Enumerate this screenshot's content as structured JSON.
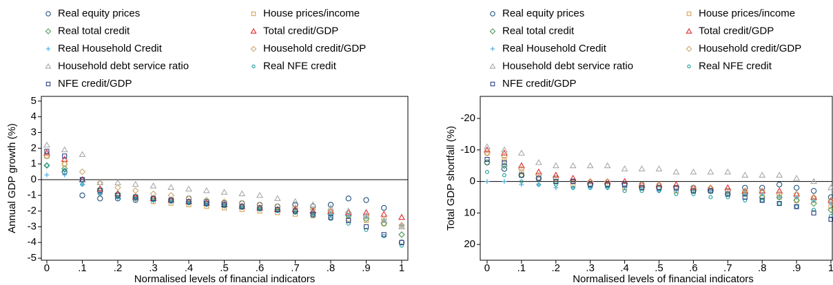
{
  "chart_data": [
    {
      "type": "scatter",
      "ylabel": "Annual GDP growth (%)",
      "xlabel": "Normalised levels of financial indicators",
      "x": [
        0,
        0.05,
        0.1,
        0.15,
        0.2,
        0.25,
        0.3,
        0.35,
        0.4,
        0.45,
        0.5,
        0.55,
        0.6,
        0.65,
        0.7,
        0.75,
        0.8,
        0.85,
        0.9,
        0.95,
        1
      ],
      "xlim": [
        -0.0155,
        1.0175
      ],
      "ylim": [
        -5.13,
        5.3
      ],
      "xticks": [
        0,
        {
          "value": 0.1,
          "label": ".1"
        },
        {
          "value": 0.2,
          "label": ".2"
        },
        {
          "value": 0.3,
          "label": ".3"
        },
        {
          "value": 0.4,
          "label": ".4"
        },
        {
          "value": 0.5,
          "label": ".5"
        },
        {
          "value": 0.6,
          "label": ".6"
        },
        {
          "value": 0.7,
          "label": ".7"
        },
        {
          "value": 0.8,
          "label": ".8"
        },
        {
          "value": 0.9,
          "label": ".9"
        },
        1
      ],
      "yticks": [
        5,
        4,
        3,
        2,
        1,
        0,
        -1,
        -2,
        -3,
        -4,
        -5
      ],
      "series": [
        {
          "name": "Real equity prices",
          "color": "#1f4e79",
          "marker": "circle",
          "values": [
            1.5,
            0.5,
            -1,
            -1.2,
            -1.2,
            -1.3,
            -1.2,
            -1.3,
            -1.2,
            -1.4,
            -1.5,
            -1.5,
            -1.6,
            -1.7,
            -1.6,
            -1.7,
            -1.6,
            -1.2,
            -1.3,
            -1.8,
            -4.0
          ]
        },
        {
          "name": "House prices/income",
          "color": "#d9a050",
          "marker": "square",
          "values": [
            1.5,
            1.0,
            0,
            -0.8,
            -1.0,
            -1.2,
            -1.4,
            -1.5,
            -1.6,
            -1.7,
            -1.8,
            -1.9,
            -2.0,
            -2.1,
            -2.2,
            -2.3,
            -2.4,
            -2.5,
            -2.6,
            -2.8,
            -3.0
          ]
        },
        {
          "name": "Real total credit",
          "color": "#4c9a5a",
          "marker": "diamond",
          "values": [
            0.9,
            0.7,
            0,
            -0.6,
            -0.9,
            -1.1,
            -1.2,
            -1.3,
            -1.4,
            -1.5,
            -1.6,
            -1.7,
            -1.8,
            -1.9,
            -2.0,
            -2.1,
            -2.2,
            -2.3,
            -2.5,
            -2.8,
            -3.5
          ]
        },
        {
          "name": "Total credit/GDP",
          "color": "#e3262b",
          "marker": "triangle",
          "values": [
            1.7,
            1.3,
            0,
            -0.6,
            -0.9,
            -1.1,
            -1.2,
            -1.3,
            -1.4,
            -1.5,
            -1.6,
            -1.7,
            -1.8,
            -1.9,
            -1.9,
            -2.0,
            -2.0,
            -2.1,
            -2.1,
            -2.2,
            -2.4
          ]
        },
        {
          "name": "Real Household Credit",
          "color": "#3aa6dd",
          "marker": "plus",
          "values": [
            0.3,
            0.3,
            -0.3,
            -0.9,
            -1.2,
            -1.3,
            -1.4,
            -1.4,
            -1.5,
            -1.6,
            -1.6,
            -1.7,
            -1.8,
            -1.9,
            -2.0,
            -2.1,
            -2.2,
            -2.3,
            -2.4,
            -2.6,
            -2.9
          ]
        },
        {
          "name": "Household credit/GDP",
          "color": "#c9a56e",
          "marker": "diamond",
          "values": [
            1.5,
            1.0,
            0.5,
            -0.2,
            -0.5,
            -0.7,
            -0.9,
            -1.0,
            -1.2,
            -1.3,
            -1.4,
            -1.5,
            -1.6,
            -1.7,
            -1.8,
            -1.9,
            -2.0,
            -2.1,
            -2.3,
            -2.5,
            -2.9
          ]
        },
        {
          "name": "Household debt service ratio",
          "color": "#a8a8a8",
          "marker": "triangle",
          "values": [
            2.2,
            1.9,
            1.6,
            -0.2,
            -0.2,
            -0.3,
            -0.4,
            -0.5,
            -0.6,
            -0.7,
            -0.8,
            -0.9,
            -1.0,
            -1.2,
            -1.4,
            -1.6,
            -1.8,
            -2.0,
            -2.3,
            -2.6,
            -3.0
          ]
        },
        {
          "name": "Real NFE credit",
          "color": "#1a9a9a",
          "marker": "smallcircle",
          "values": [
            0.9,
            0.6,
            -0.3,
            -0.9,
            -1.1,
            -1.2,
            -1.3,
            -1.4,
            -1.5,
            -1.6,
            -1.7,
            -1.8,
            -1.9,
            -2.0,
            -2.1,
            -2.3,
            -2.5,
            -2.8,
            -3.2,
            -3.6,
            -4.2
          ]
        },
        {
          "name": "NFE credit/GDP",
          "color": "#2b3f80",
          "marker": "square",
          "values": [
            1.8,
            1.5,
            0,
            -0.7,
            -1.0,
            -1.1,
            -1.2,
            -1.3,
            -1.4,
            -1.5,
            -1.6,
            -1.7,
            -1.8,
            -1.9,
            -2.0,
            -2.2,
            -2.4,
            -2.6,
            -3.0,
            -3.5,
            -4.0
          ]
        }
      ]
    },
    {
      "type": "scatter",
      "ylabel": "Total GDP shortfall (%)",
      "xlabel": "Normalised levels of financial indicators",
      "x": [
        0,
        0.05,
        0.1,
        0.15,
        0.2,
        0.25,
        0.3,
        0.35,
        0.4,
        0.45,
        0.5,
        0.55,
        0.6,
        0.65,
        0.7,
        0.75,
        0.8,
        0.85,
        0.9,
        0.95,
        1
      ],
      "xlim": [
        -0.02,
        1.004
      ],
      "ylim": [
        25,
        -27
      ],
      "xticks": [
        0,
        {
          "value": 0.1,
          "label": ".1"
        },
        {
          "value": 0.2,
          "label": ".2"
        },
        {
          "value": 0.3,
          "label": ".3"
        },
        {
          "value": 0.4,
          "label": ".4"
        },
        {
          "value": 0.5,
          "label": ".5"
        },
        {
          "value": 0.6,
          "label": ".6"
        },
        {
          "value": 0.7,
          "label": ".7"
        },
        {
          "value": 0.8,
          "label": ".8"
        },
        {
          "value": 0.9,
          "label": ".9"
        },
        1
      ],
      "yticks": [
        -20,
        -10,
        0,
        10,
        20
      ],
      "series": [
        {
          "name": "Real equity prices",
          "color": "#1f4e79",
          "marker": "circle",
          "values": [
            -6,
            -4,
            -2,
            -1,
            -1,
            0,
            1,
            1,
            1,
            1,
            2,
            2,
            2,
            3,
            3,
            2,
            2,
            1,
            2,
            3,
            5
          ]
        },
        {
          "name": "House prices/income",
          "color": "#d9a050",
          "marker": "square",
          "values": [
            -9,
            -7,
            -3,
            -1,
            0,
            1,
            1,
            1,
            2,
            2,
            2,
            3,
            3,
            3,
            4,
            4,
            5,
            5,
            6,
            6,
            8
          ]
        },
        {
          "name": "Real total credit",
          "color": "#4c9a5a",
          "marker": "diamond",
          "values": [
            -6,
            -5,
            -2,
            -1,
            0,
            0,
            1,
            1,
            1,
            2,
            2,
            2,
            3,
            3,
            4,
            4,
            5,
            5,
            6,
            7,
            9
          ]
        },
        {
          "name": "Total credit/GDP",
          "color": "#e3262b",
          "marker": "triangle",
          "values": [
            -10,
            -9,
            -5,
            -3,
            -2,
            -1,
            0,
            0,
            0,
            1,
            1,
            1,
            2,
            2,
            2,
            3,
            3,
            3,
            4,
            5,
            6
          ]
        },
        {
          "name": "Real Household Credit",
          "color": "#3aa6dd",
          "marker": "plus",
          "values": [
            0,
            0,
            1,
            1,
            2,
            2,
            2,
            2,
            2,
            2,
            3,
            3,
            3,
            3,
            4,
            4,
            4,
            5,
            5,
            6,
            7
          ]
        },
        {
          "name": "Household credit/GDP",
          "color": "#c9a56e",
          "marker": "diamond",
          "values": [
            -9,
            -8,
            -4,
            -2,
            -1,
            0,
            0,
            0,
            1,
            1,
            1,
            2,
            2,
            2,
            3,
            3,
            3,
            4,
            4,
            5,
            6
          ]
        },
        {
          "name": "Household debt service ratio",
          "color": "#a8a8a8",
          "marker": "triangle",
          "values": [
            -11,
            -10,
            -9,
            -6,
            -5,
            -5,
            -5,
            -5,
            -4,
            -4,
            -4,
            -3,
            -3,
            -3,
            -3,
            -2,
            -2,
            -2,
            -1,
            0,
            2
          ]
        },
        {
          "name": "Real NFE credit",
          "color": "#1a9a9a",
          "marker": "smallcircle",
          "values": [
            -3,
            -2,
            0,
            1,
            1,
            2,
            2,
            2,
            3,
            3,
            3,
            4,
            4,
            5,
            5,
            6,
            6,
            7,
            8,
            9,
            11
          ]
        },
        {
          "name": "NFE credit/GDP",
          "color": "#2b3f80",
          "marker": "square",
          "values": [
            -7,
            -6,
            -2,
            -1,
            0,
            0,
            1,
            1,
            1,
            2,
            2,
            2,
            3,
            3,
            4,
            5,
            6,
            7,
            8,
            10,
            12
          ]
        }
      ]
    }
  ]
}
